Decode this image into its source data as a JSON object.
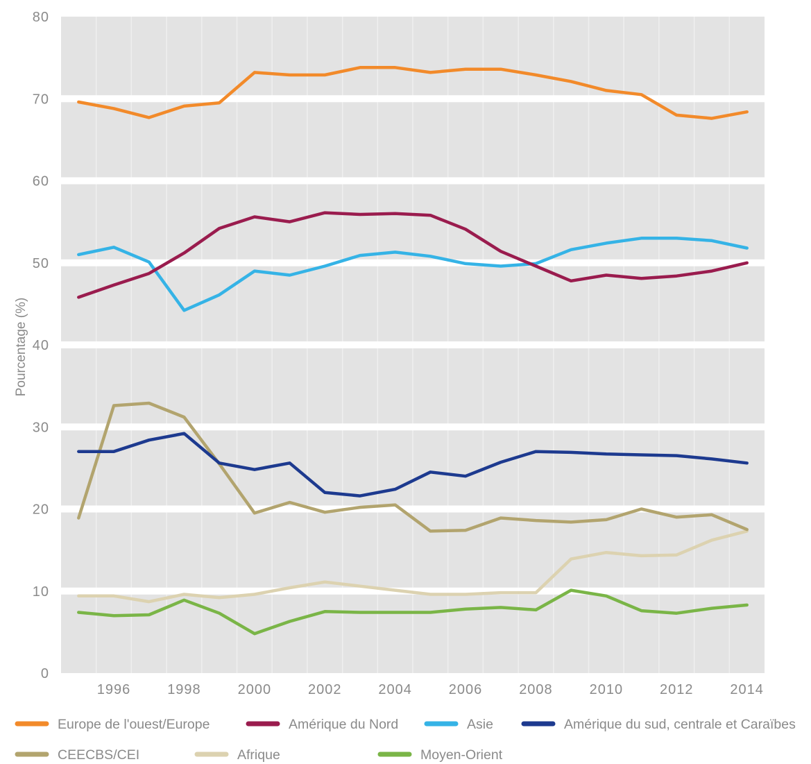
{
  "chart_data": {
    "type": "line",
    "ylabel": "Pourcentage (%)",
    "x": [
      1995,
      1996,
      1997,
      1998,
      1999,
      2000,
      2001,
      2002,
      2003,
      2004,
      2005,
      2006,
      2007,
      2008,
      2009,
      2010,
      2011,
      2012,
      2013,
      2014
    ],
    "xticks": [
      1996,
      1998,
      2000,
      2002,
      2004,
      2006,
      2008,
      2010,
      2012,
      2014
    ],
    "yticks": [
      0,
      10,
      20,
      30,
      40,
      50,
      60,
      70,
      80
    ],
    "xlim": [
      1994.5,
      2014.5
    ],
    "ylim": [
      0,
      80
    ],
    "grid": true,
    "legend": "bottom",
    "series": [
      {
        "name": "Europe de l'ouest/Europe",
        "color": "#f28a2a",
        "values": [
          69.6,
          68.8,
          67.7,
          69.1,
          69.5,
          73.2,
          72.9,
          72.9,
          73.8,
          73.8,
          73.2,
          73.6,
          73.6,
          72.9,
          72.1,
          71.0,
          70.5,
          68.0,
          67.6,
          68.4
        ]
      },
      {
        "name": "Amérique du Nord",
        "color": "#9a1c4e",
        "values": [
          45.8,
          47.3,
          48.7,
          51.2,
          54.2,
          55.6,
          55.0,
          56.1,
          55.9,
          56.0,
          55.8,
          54.1,
          51.4,
          49.6,
          47.8,
          48.5,
          48.1,
          48.4,
          49.0,
          50.0
        ]
      },
      {
        "name": "Asie",
        "color": "#35b3e6",
        "values": [
          51.0,
          51.9,
          50.1,
          44.2,
          46.1,
          49.0,
          48.5,
          49.6,
          50.9,
          51.3,
          50.8,
          49.9,
          49.6,
          49.9,
          51.6,
          52.4,
          53.0,
          53.0,
          52.7,
          51.8
        ]
      },
      {
        "name": "Amérique du sud, centrale et Caraïbes",
        "color": "#1d3a8f",
        "values": [
          27.0,
          27.0,
          28.4,
          29.2,
          25.6,
          24.8,
          25.6,
          22.0,
          21.6,
          22.4,
          24.5,
          24.0,
          25.7,
          27.0,
          26.9,
          26.7,
          26.6,
          26.5,
          26.1,
          25.6
        ]
      },
      {
        "name": "CEECBS/CEI",
        "color": "#b2a46e",
        "values": [
          18.9,
          32.6,
          32.9,
          31.2,
          25.5,
          19.5,
          20.8,
          19.6,
          20.2,
          20.5,
          17.3,
          17.4,
          18.9,
          18.6,
          18.4,
          18.7,
          20.0,
          19.0,
          19.3,
          17.5
        ]
      },
      {
        "name": "Afrique",
        "color": "#dcd2b0",
        "values": [
          9.4,
          9.4,
          8.7,
          9.6,
          9.2,
          9.6,
          10.4,
          11.1,
          10.6,
          10.1,
          9.6,
          9.6,
          9.8,
          9.8,
          13.9,
          14.7,
          14.3,
          14.4,
          16.2,
          17.3
        ]
      },
      {
        "name": "Moyen-Orient",
        "color": "#7ab547",
        "values": [
          7.4,
          7.0,
          7.1,
          8.9,
          7.3,
          4.8,
          6.3,
          7.5,
          7.4,
          7.4,
          7.4,
          7.8,
          8.0,
          7.7,
          10.1,
          9.4,
          7.6,
          7.3,
          7.9,
          8.3
        ]
      }
    ]
  }
}
